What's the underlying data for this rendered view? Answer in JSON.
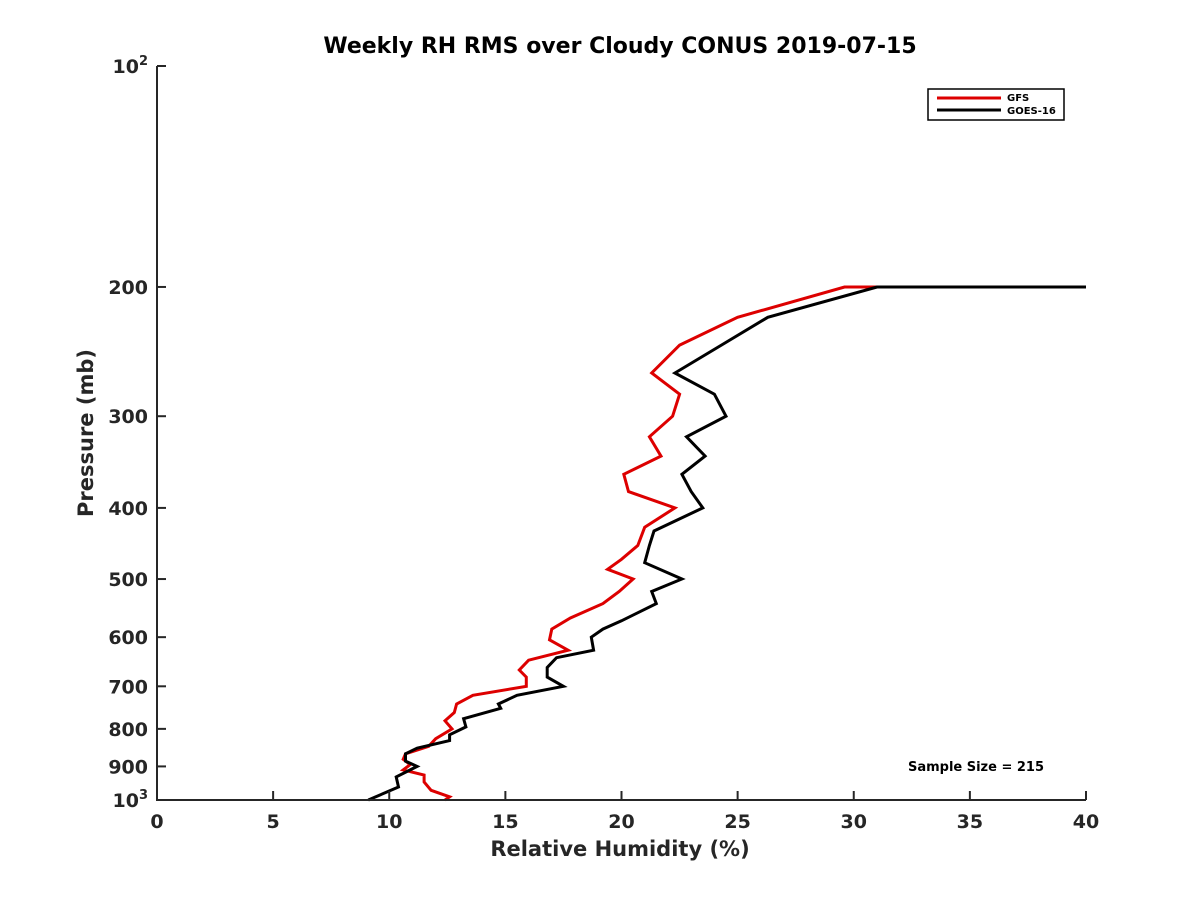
{
  "chart_data": {
    "type": "line",
    "title": "Weekly RH RMS over Cloudy CONUS 2019-07-15",
    "xlabel": "Relative Humidity (%)",
    "ylabel": "Pressure (mb)",
    "xlim": [
      0,
      40
    ],
    "ylim": [
      100,
      1000
    ],
    "yscale": "log",
    "yreversed": true,
    "xticks": [
      0,
      5,
      10,
      15,
      20,
      25,
      30,
      35,
      40
    ],
    "yticks": [
      {
        "value": 100,
        "base": "10",
        "exp": "2"
      },
      {
        "value": 200,
        "label": "200"
      },
      {
        "value": 300,
        "label": "300"
      },
      {
        "value": 400,
        "label": "400"
      },
      {
        "value": 500,
        "label": "500"
      },
      {
        "value": 600,
        "label": "600"
      },
      {
        "value": 700,
        "label": "700"
      },
      {
        "value": 800,
        "label": "800"
      },
      {
        "value": 900,
        "label": "900"
      },
      {
        "value": 1000,
        "base": "10",
        "exp": "3"
      }
    ],
    "grid": false,
    "legend_position": "top-right",
    "series": [
      {
        "name": "GFS",
        "color": "#dd0000",
        "points": [
          [
            40.0,
            200
          ],
          [
            29.6,
            200
          ],
          [
            25.0,
            220
          ],
          [
            22.5,
            240
          ],
          [
            21.3,
            262
          ],
          [
            22.5,
            280
          ],
          [
            22.2,
            300
          ],
          [
            21.2,
            320
          ],
          [
            21.7,
            340
          ],
          [
            20.1,
            360
          ],
          [
            20.3,
            380
          ],
          [
            22.3,
            400
          ],
          [
            21.0,
            425
          ],
          [
            20.7,
            450
          ],
          [
            20.0,
            470
          ],
          [
            19.4,
            485
          ],
          [
            20.5,
            500
          ],
          [
            19.9,
            520
          ],
          [
            19.2,
            540
          ],
          [
            17.8,
            565
          ],
          [
            17.0,
            585
          ],
          [
            16.9,
            605
          ],
          [
            17.7,
            625
          ],
          [
            16.0,
            645
          ],
          [
            15.6,
            665
          ],
          [
            15.9,
            680
          ],
          [
            15.9,
            700
          ],
          [
            13.6,
            720
          ],
          [
            12.9,
            740
          ],
          [
            12.8,
            760
          ],
          [
            12.4,
            780
          ],
          [
            12.7,
            800
          ],
          [
            12.0,
            825
          ],
          [
            11.7,
            845
          ],
          [
            10.7,
            865
          ],
          [
            10.6,
            880
          ],
          [
            10.9,
            895
          ],
          [
            10.6,
            910
          ],
          [
            11.5,
            925
          ],
          [
            11.5,
            945
          ],
          [
            11.8,
            970
          ],
          [
            12.6,
            990
          ],
          [
            12.4,
            1000
          ]
        ]
      },
      {
        "name": "GOES-16",
        "color": "#000000",
        "points": [
          [
            40.0,
            200
          ],
          [
            31.0,
            200
          ],
          [
            26.3,
            220
          ],
          [
            24.3,
            240
          ],
          [
            22.3,
            262
          ],
          [
            24.0,
            280
          ],
          [
            24.5,
            300
          ],
          [
            22.8,
            320
          ],
          [
            23.6,
            340
          ],
          [
            22.6,
            360
          ],
          [
            23.0,
            380
          ],
          [
            23.5,
            400
          ],
          [
            21.4,
            430
          ],
          [
            21.2,
            450
          ],
          [
            21.0,
            475
          ],
          [
            22.6,
            500
          ],
          [
            21.3,
            520
          ],
          [
            21.5,
            540
          ],
          [
            20.0,
            570
          ],
          [
            19.2,
            585
          ],
          [
            18.7,
            600
          ],
          [
            18.8,
            625
          ],
          [
            17.2,
            640
          ],
          [
            16.8,
            660
          ],
          [
            16.8,
            680
          ],
          [
            17.5,
            700
          ],
          [
            15.5,
            720
          ],
          [
            14.7,
            740
          ],
          [
            14.8,
            750
          ],
          [
            13.2,
            775
          ],
          [
            13.3,
            795
          ],
          [
            12.6,
            815
          ],
          [
            12.6,
            830
          ],
          [
            11.2,
            850
          ],
          [
            10.7,
            865
          ],
          [
            10.7,
            885
          ],
          [
            11.2,
            900
          ],
          [
            10.3,
            930
          ],
          [
            10.4,
            960
          ],
          [
            9.1,
            1000
          ]
        ]
      }
    ],
    "annotation": "Sample Size = 215"
  }
}
